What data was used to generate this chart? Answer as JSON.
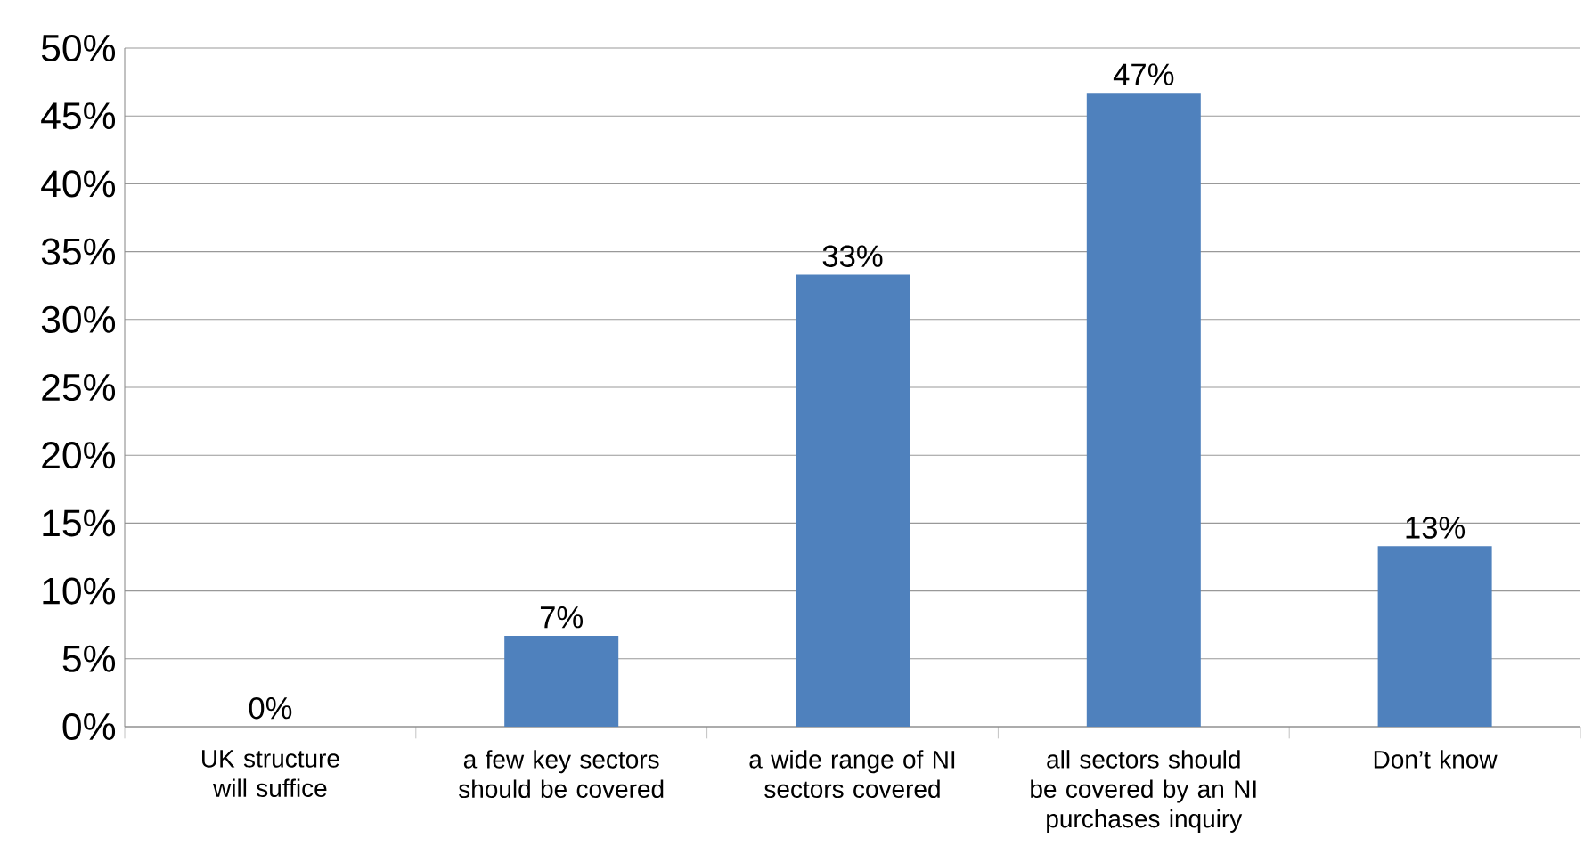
{
  "chart_data": {
    "type": "bar",
    "categories": [
      "UK structure will suffice",
      "a few key sectors should be covered",
      "a wide range of NI sectors covered",
      "all sectors should be covered by an NI purchases inquiry",
      "Don’t know"
    ],
    "values": [
      0,
      6.7,
      33.3,
      46.7,
      13.3
    ],
    "value_labels": [
      "0%",
      "7%",
      "33%",
      "47%",
      "13%"
    ],
    "color": "#4f81bd",
    "ylim": [
      0,
      50
    ],
    "yticks": [
      {
        "value": 0,
        "label": "0%"
      },
      {
        "value": 5,
        "label": "5%"
      },
      {
        "value": 10,
        "label": "10%"
      },
      {
        "value": 15,
        "label": "15%"
      },
      {
        "value": 20,
        "label": "20%"
      },
      {
        "value": 25,
        "label": "25%"
      },
      {
        "value": 30,
        "label": "30%"
      },
      {
        "value": 35,
        "label": "35%"
      },
      {
        "value": 40,
        "label": "40%"
      },
      {
        "value": 45,
        "label": "45%"
      },
      {
        "value": 50,
        "label": "50%"
      }
    ],
    "grid": "y"
  }
}
